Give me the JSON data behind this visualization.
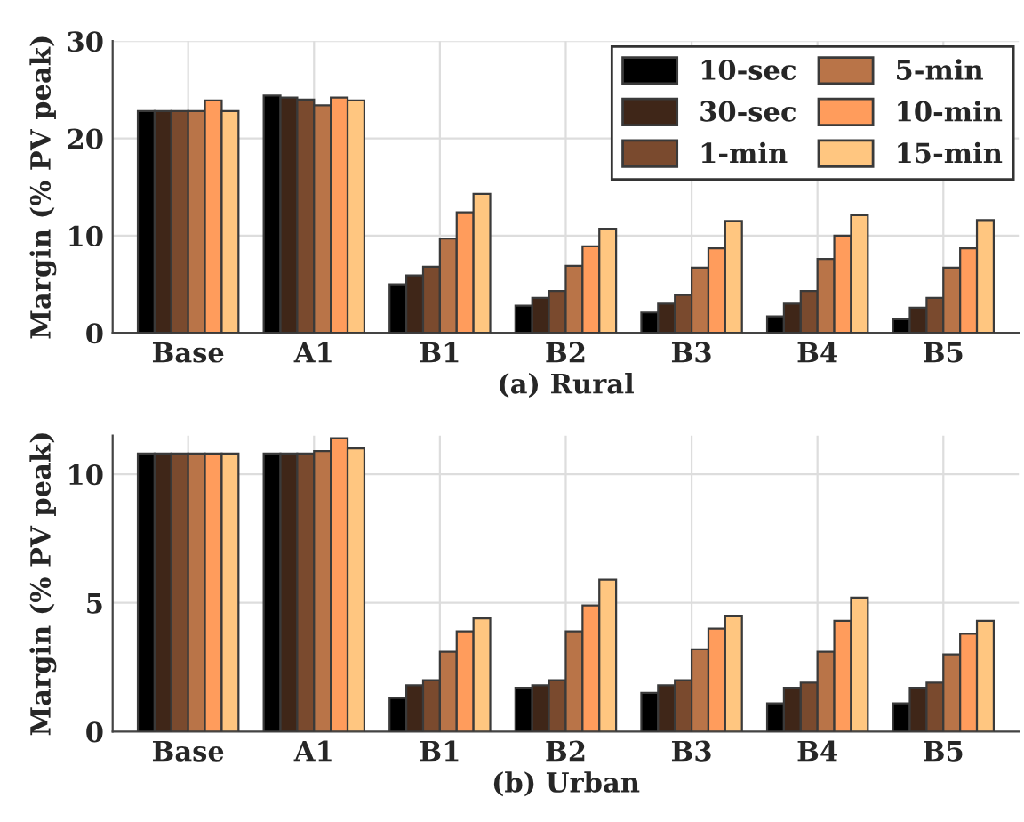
{
  "chart_data": [
    {
      "type": "bar",
      "xlabel": "(a) Rural",
      "ylabel": "Margin (% PV peak)",
      "categories": [
        "Base",
        "A1",
        "B1",
        "B2",
        "B3",
        "B4",
        "B5"
      ],
      "ylim": [
        0,
        30
      ],
      "yticks": [
        0,
        10,
        20,
        30
      ],
      "grid": true,
      "legend": "top right",
      "series": [
        {
          "name": "10-sec",
          "color": "#000000",
          "values": [
            22.8,
            24.4,
            5.0,
            2.8,
            2.1,
            1.7,
            1.4
          ]
        },
        {
          "name": "30-sec",
          "color": "#3f2618",
          "values": [
            22.8,
            24.2,
            5.9,
            3.6,
            3.0,
            3.0,
            2.6
          ]
        },
        {
          "name": "1-min",
          "color": "#7a4a2e",
          "values": [
            22.8,
            24.0,
            6.8,
            4.3,
            3.9,
            4.3,
            3.6
          ]
        },
        {
          "name": "5-min",
          "color": "#b97448",
          "values": [
            22.8,
            23.4,
            9.7,
            6.9,
            6.7,
            7.6,
            6.7
          ]
        },
        {
          "name": "10-min",
          "color": "#ff9c5c",
          "values": [
            23.9,
            24.2,
            12.4,
            8.9,
            8.7,
            10.0,
            8.7
          ]
        },
        {
          "name": "15-min",
          "color": "#ffc680",
          "values": [
            22.8,
            23.9,
            14.3,
            10.7,
            11.5,
            12.1,
            11.6
          ]
        }
      ]
    },
    {
      "type": "bar",
      "xlabel": "(b) Urban",
      "ylabel": "Margin (% PV peak)",
      "categories": [
        "Base",
        "A1",
        "B1",
        "B2",
        "B3",
        "B4",
        "B5"
      ],
      "ylim": [
        0,
        11.5
      ],
      "yticks": [
        0,
        5,
        10
      ],
      "grid": true,
      "series": [
        {
          "color": "#000000",
          "values": [
            10.8,
            10.8,
            1.3,
            1.7,
            1.5,
            1.1,
            1.1
          ]
        },
        {
          "color": "#3f2618",
          "values": [
            10.8,
            10.8,
            1.8,
            1.8,
            1.8,
            1.7,
            1.7
          ]
        },
        {
          "color": "#7a4a2e",
          "values": [
            10.8,
            10.8,
            2.0,
            2.0,
            2.0,
            1.9,
            1.9
          ]
        },
        {
          "color": "#b97448",
          "values": [
            10.8,
            10.9,
            3.1,
            3.9,
            3.2,
            3.1,
            3.0
          ]
        },
        {
          "color": "#ff9c5c",
          "values": [
            10.8,
            11.4,
            3.9,
            4.9,
            4.0,
            4.3,
            3.8
          ]
        },
        {
          "color": "#ffc680",
          "values": [
            10.8,
            11.0,
            4.4,
            5.9,
            4.5,
            5.2,
            4.3
          ]
        }
      ]
    }
  ]
}
